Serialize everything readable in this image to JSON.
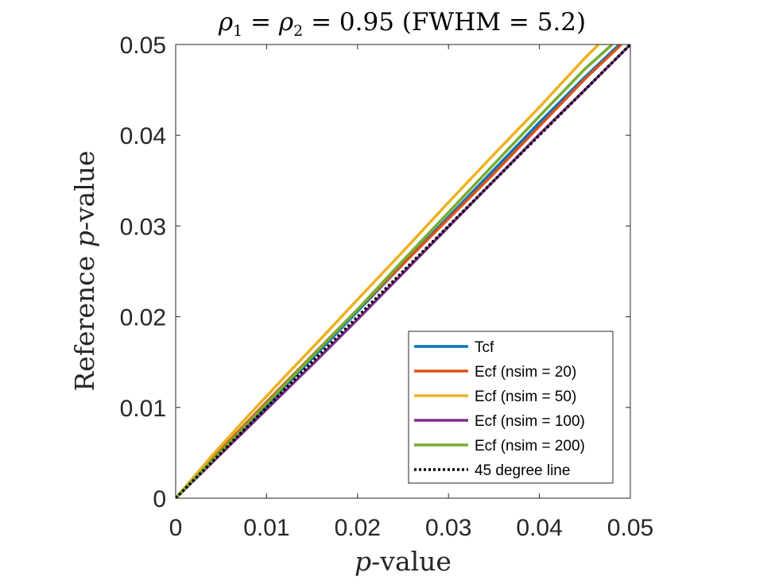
{
  "chart_data": {
    "type": "line",
    "title": {
      "rho": "ρ",
      "sub1": "1",
      "eq1": " = ",
      "sub2": "2",
      "rest": " = 0.95 (FWHM = 5.2)"
    },
    "xlabel": {
      "italic": "p",
      "rest": "-value"
    },
    "ylabel": {
      "prefix": "Reference ",
      "italic": "p",
      "rest": "-value"
    },
    "xlim": [
      0,
      0.05
    ],
    "ylim": [
      0,
      0.05
    ],
    "xticks": [
      0,
      0.01,
      0.02,
      0.03,
      0.04,
      0.05
    ],
    "xtick_labels": [
      "0",
      "0.01",
      "0.02",
      "0.03",
      "0.04",
      "0.05"
    ],
    "yticks": [
      0,
      0.01,
      0.02,
      0.03,
      0.04,
      0.05
    ],
    "ytick_labels": [
      "0",
      "0.01",
      "0.02",
      "0.03",
      "0.04",
      "0.05"
    ],
    "grid": false,
    "legend_position": "bottom-right",
    "series": [
      {
        "name": "Tcf",
        "color": "#0072BD",
        "style": "solid",
        "x": [
          0,
          0.005,
          0.01,
          0.015,
          0.02,
          0.025,
          0.03,
          0.035,
          0.04,
          0.045,
          0.0488
        ],
        "y": [
          0,
          0.0051,
          0.0102,
          0.0154,
          0.0206,
          0.0258,
          0.031,
          0.0362,
          0.0414,
          0.0464,
          0.05
        ]
      },
      {
        "name": "Ecf (nsim = 20)",
        "color": "#D95319",
        "style": "solid",
        "x": [
          0,
          0.005,
          0.01,
          0.015,
          0.02,
          0.025,
          0.03,
          0.035,
          0.04,
          0.045,
          0.049
        ],
        "y": [
          0,
          0.0054,
          0.0106,
          0.0157,
          0.0208,
          0.0258,
          0.0308,
          0.0358,
          0.041,
          0.0462,
          0.05
        ]
      },
      {
        "name": "Ecf (nsim = 50)",
        "color": "#EDB120",
        "style": "solid",
        "x": [
          0,
          0.004,
          0.008,
          0.012,
          0.016,
          0.02,
          0.025,
          0.03,
          0.035,
          0.04,
          0.045,
          0.0465
        ],
        "y": [
          0,
          0.0047,
          0.0091,
          0.0134,
          0.0176,
          0.0219,
          0.0272,
          0.0326,
          0.0379,
          0.0431,
          0.0485,
          0.05
        ]
      },
      {
        "name": "Ecf (nsim = 100)",
        "color": "#7E2F8E",
        "style": "solid",
        "x": [
          0,
          0.005,
          0.01,
          0.015,
          0.02,
          0.025,
          0.03,
          0.035,
          0.04,
          0.045,
          0.05
        ],
        "y": [
          0,
          0.0049,
          0.0098,
          0.0147,
          0.0197,
          0.0248,
          0.0299,
          0.035,
          0.0401,
          0.045,
          0.05
        ]
      },
      {
        "name": "Ecf (nsim = 200)",
        "color": "#77AC30",
        "style": "solid",
        "x": [
          0,
          0.005,
          0.01,
          0.015,
          0.02,
          0.025,
          0.03,
          0.035,
          0.04,
          0.045,
          0.048
        ],
        "y": [
          0,
          0.0052,
          0.0104,
          0.0156,
          0.0208,
          0.0262,
          0.0315,
          0.0368,
          0.0421,
          0.0473,
          0.05
        ]
      },
      {
        "name": "45 degree line",
        "color": "#000000",
        "style": "dotted",
        "x": [
          0,
          0.05
        ],
        "y": [
          0,
          0.05
        ]
      }
    ]
  }
}
